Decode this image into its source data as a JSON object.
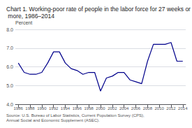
{
  "chart_data": {
    "type": "line",
    "title": "Chart 1. Working-poor rate of people in the labor force for 27 weeks or more, 1986–2014",
    "ylabel": "Percent",
    "annotations": [
      "Source: U.S. Bureau of Labor Statistics, Current Population Survey (CPS), Annual Social and Economic Supplement (ASEC)."
    ],
    "x": [
      1986,
      1987,
      1988,
      1989,
      1990,
      1991,
      1992,
      1993,
      1994,
      1995,
      1996,
      1997,
      1998,
      1999,
      2000,
      2001,
      2002,
      2003,
      2004,
      2005,
      2006,
      2007,
      2008,
      2009,
      2010,
      2011,
      2012,
      2013,
      2014
    ],
    "values": [
      6.2,
      5.7,
      5.6,
      5.6,
      5.7,
      6.2,
      6.8,
      6.8,
      6.2,
      5.9,
      5.8,
      5.6,
      5.7,
      5.7,
      4.7,
      5.4,
      5.5,
      5.7,
      5.7,
      5.3,
      5.2,
      5.1,
      6.3,
      7.2,
      7.2,
      7.2,
      7.3,
      6.3,
      6.3
    ],
    "color": "#00008B",
    "xlim": [
      1985.5,
      2014.5
    ],
    "xticks": [
      1986,
      1988,
      1990,
      1992,
      1994,
      1996,
      1998,
      2000,
      2002,
      2004,
      2006,
      2008,
      2010,
      2012,
      2014
    ],
    "ylim": [
      4.0,
      8.0
    ],
    "yticks": [
      {
        "value": 4,
        "label": "4.0"
      },
      {
        "value": 5,
        "label": "5.0"
      },
      {
        "value": 6,
        "label": "6.0"
      },
      {
        "value": 7,
        "label": "7.0"
      },
      {
        "value": 8,
        "label": "8.0"
      }
    ],
    "grid": true
  }
}
